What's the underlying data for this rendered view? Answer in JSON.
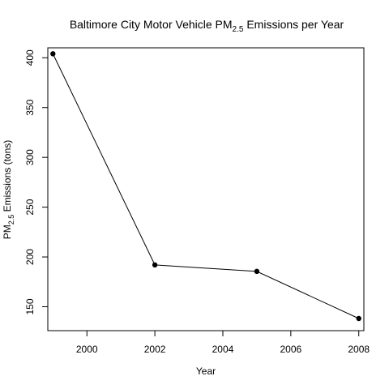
{
  "chart_data": {
    "type": "line",
    "title": {
      "prefix": "Baltimore City Motor Vehicle PM",
      "sub": "2.5",
      "suffix": " Emissions per Year"
    },
    "xlabel": "Year",
    "ylabel": {
      "prefix": "PM",
      "sub": "2.5",
      "suffix": " Emissions (tons)"
    },
    "x": [
      1999,
      2002,
      2005,
      2008
    ],
    "y": [
      404,
      192,
      185.5,
      138.2
    ],
    "xlim": [
      1998.85,
      2008.15
    ],
    "ylim": [
      126,
      410
    ],
    "xticks": [
      2000,
      2002,
      2004,
      2006,
      2008
    ],
    "yticks": [
      150,
      200,
      250,
      300,
      350,
      400
    ],
    "grid": false,
    "markers": "filled-circle",
    "line_color": "#000000"
  }
}
